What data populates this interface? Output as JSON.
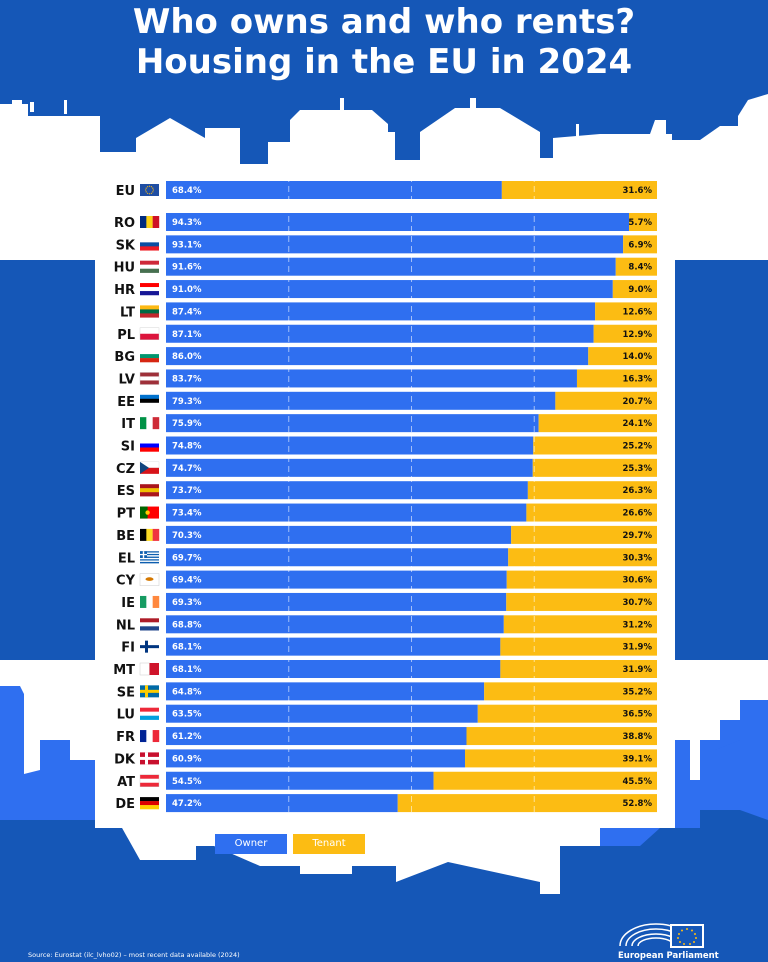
{
  "title_lines": [
    "Who owns and who rents?",
    "Housing in the EU in 2024"
  ],
  "colors": {
    "owner": "#2f6ff0",
    "tenant": "#fcbc13",
    "background": "#1557b7",
    "white": "#ffffff"
  },
  "source": "Source: Eurostat (ilc_lvho02) – most recent data available (2024)",
  "publisher": "European Parliament",
  "chart_data": {
    "type": "bar",
    "orientation": "horizontal",
    "stacked": true,
    "unit": "%",
    "xlim": [
      0,
      100
    ],
    "grid": true,
    "legend_position": "bottom-left",
    "categories": [
      "EU",
      "RO",
      "SK",
      "HU",
      "HR",
      "LT",
      "PL",
      "BG",
      "LV",
      "EE",
      "IT",
      "SI",
      "CZ",
      "ES",
      "PT",
      "BE",
      "EL",
      "CY",
      "IE",
      "NL",
      "FI",
      "MT",
      "SE",
      "LU",
      "FR",
      "DK",
      "AT",
      "DE"
    ],
    "flags": [
      "flag-eu-icon",
      "flag-ro-icon",
      "flag-sk-icon",
      "flag-hu-icon",
      "flag-hr-icon",
      "flag-lt-icon",
      "flag-pl-icon",
      "flag-bg-icon",
      "flag-lv-icon",
      "flag-ee-icon",
      "flag-it-icon",
      "flag-si-icon",
      "flag-cz-icon",
      "flag-es-icon",
      "flag-pt-icon",
      "flag-be-icon",
      "flag-el-icon",
      "flag-cy-icon",
      "flag-ie-icon",
      "flag-nl-icon",
      "flag-fi-icon",
      "flag-mt-icon",
      "flag-se-icon",
      "flag-lu-icon",
      "flag-fr-icon",
      "flag-dk-icon",
      "flag-at-icon",
      "flag-de-icon"
    ],
    "series": [
      {
        "name": "Owner",
        "values": [
          68.4,
          94.3,
          93.1,
          91.6,
          91.0,
          87.4,
          87.1,
          86.0,
          83.7,
          79.3,
          75.9,
          74.8,
          74.7,
          73.7,
          73.4,
          70.3,
          69.7,
          69.4,
          69.3,
          68.8,
          68.1,
          68.1,
          64.8,
          63.5,
          61.2,
          60.9,
          54.5,
          47.2
        ]
      },
      {
        "name": "Tenant",
        "values": [
          31.6,
          5.7,
          6.9,
          8.4,
          9.0,
          12.6,
          12.9,
          14.0,
          16.3,
          20.7,
          24.1,
          25.2,
          25.3,
          26.3,
          26.6,
          29.7,
          30.3,
          30.6,
          30.7,
          31.2,
          31.9,
          31.9,
          35.2,
          36.5,
          38.8,
          39.1,
          45.5,
          52.8
        ]
      }
    ],
    "labels": {
      "owner": [
        "68.4%",
        "94.3%",
        "93.1%",
        "91.6%",
        "91.0%",
        "87.4%",
        "87.1%",
        "86.0%",
        "83.7%",
        "79.3%",
        "75.9%",
        "74.8%",
        "74.7%",
        "73.7%",
        "73.4%",
        "70.3%",
        "69.7%",
        "69.4%",
        "69.3%",
        "68.8%",
        "68.1%",
        "68.1%",
        "64.8%",
        "63.5%",
        "61.2%",
        "60.9%",
        "54.5%",
        "47.2%"
      ],
      "tenant": [
        "31.6%",
        "5.7%",
        "6.9%",
        "8.4%",
        "9.0%",
        "12.6%",
        "12.9%",
        "14.0%",
        "16.3%",
        "20.7%",
        "24.1%",
        "25.2%",
        "25.3%",
        "26.3%",
        "26.6%",
        "29.7%",
        "30.3%",
        "30.6%",
        "30.7%",
        "31.2%",
        "31.9%",
        "31.9%",
        "35.2%",
        "36.5%",
        "38.8%",
        "39.1%",
        "45.5%",
        "52.8%"
      ]
    }
  },
  "legend": {
    "owner_label": "Owner",
    "tenant_label": "Tenant"
  }
}
